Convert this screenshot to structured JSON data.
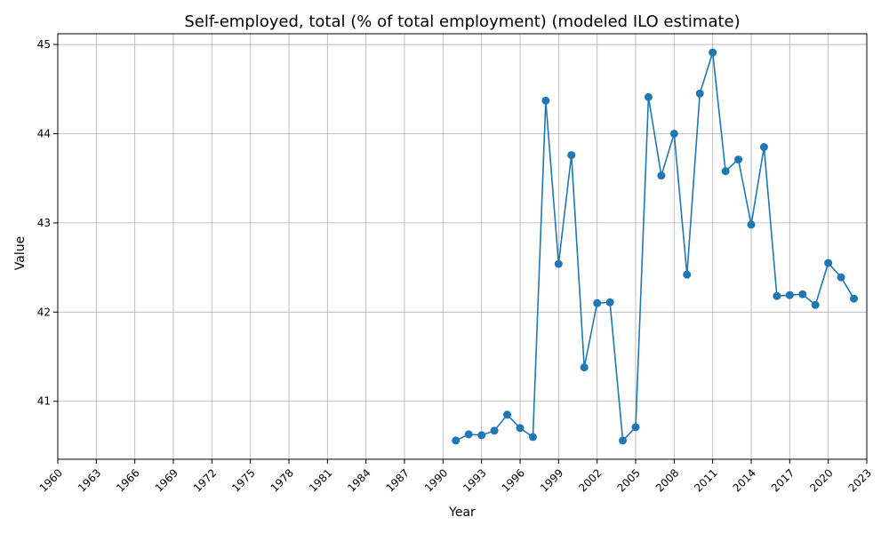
{
  "chart_data": {
    "type": "line",
    "title": "Self-employed, total (% of total employment) (modeled ILO estimate)",
    "xlabel": "Year",
    "ylabel": "Value",
    "xlim": [
      1960,
      2023
    ],
    "ylim": [
      40.35,
      45.12
    ],
    "xticks": [
      1960,
      1963,
      1966,
      1969,
      1972,
      1975,
      1978,
      1981,
      1984,
      1987,
      1990,
      1993,
      1996,
      1999,
      2002,
      2005,
      2008,
      2011,
      2014,
      2017,
      2020,
      2023
    ],
    "yticks": [
      41,
      42,
      43,
      44,
      45
    ],
    "grid": true,
    "legend": "none",
    "color": "#1f77b4",
    "x": [
      1991,
      1992,
      1993,
      1994,
      1995,
      1996,
      1997,
      1998,
      1999,
      2000,
      2001,
      2002,
      2003,
      2004,
      2005,
      2006,
      2007,
      2008,
      2009,
      2010,
      2011,
      2012,
      2013,
      2014,
      2015,
      2016,
      2017,
      2018,
      2019,
      2020,
      2021,
      2022
    ],
    "y": [
      40.56,
      40.63,
      40.62,
      40.67,
      40.85,
      40.7,
      40.6,
      44.37,
      42.54,
      43.76,
      41.38,
      42.1,
      42.11,
      40.56,
      40.71,
      44.41,
      43.53,
      44.0,
      42.42,
      44.45,
      44.91,
      43.58,
      43.71,
      42.98,
      43.85,
      42.18,
      42.19,
      42.2,
      42.08,
      42.55,
      42.39,
      42.15
    ]
  }
}
